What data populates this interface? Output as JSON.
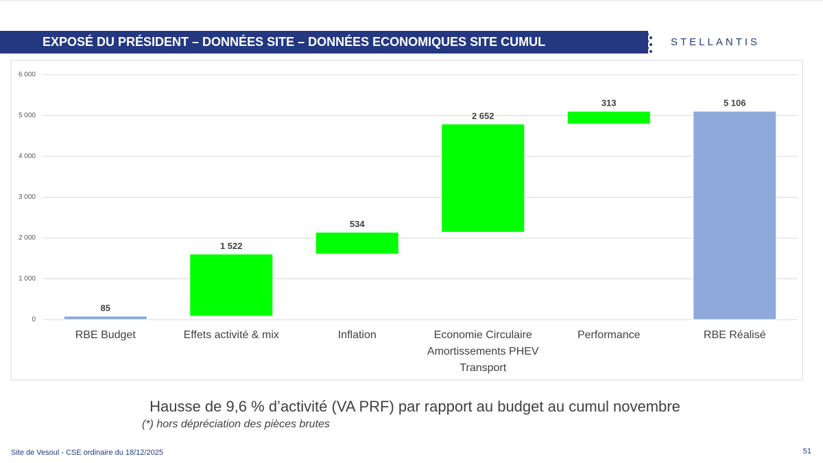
{
  "header": {
    "title": "EXPOSÉ DU PRÉSIDENT – DONNÉES SITE – DONNÉES ECONOMIQUES SITE CUMUL",
    "logo": "STELLANTIS"
  },
  "chart_data": {
    "type": "waterfall",
    "categories": [
      "RBE Budget",
      "Effets activité & mix",
      "Inflation",
      "Economie Circulaire\nAmortissements PHEV\nTransport",
      "Performance",
      "RBE Réalisé"
    ],
    "values": [
      85,
      1522,
      534,
      2652,
      313,
      5106
    ],
    "value_labels": [
      "85",
      "1 522",
      "534",
      "2 652",
      "313",
      "5 106"
    ],
    "measure": [
      "absolute",
      "relative",
      "relative",
      "relative",
      "relative",
      "absolute"
    ],
    "colors": {
      "absolute": "#8eaadb",
      "relative": "#00ff00"
    },
    "ylim": [
      0,
      6000
    ],
    "yticks": [
      0,
      {
        "value": 1000,
        "label": "1 000"
      },
      {
        "value": 2000,
        "label": "2 000"
      },
      {
        "value": 3000,
        "label": "3 000"
      },
      {
        "value": 4000,
        "label": "4 000"
      },
      {
        "value": 5000,
        "label": "5 000"
      },
      {
        "value": 6000,
        "label": "6 000"
      }
    ],
    "grid": true
  },
  "caption": {
    "text": "Hausse de 9,6 % d’activité (VA PRF) par rapport au budget au cumul novembre",
    "note": "(*) hors dépréciation des pièces brutes"
  },
  "footer": {
    "left": "Site de Vesoul - CSE ordinaire du 18/12/2025",
    "page": "51"
  }
}
